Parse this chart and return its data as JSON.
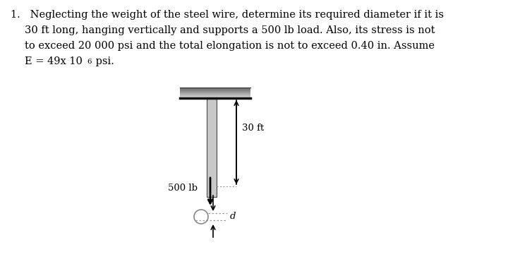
{
  "bg_color": "#ffffff",
  "text_color": "#000000",
  "arrow_color": "#000000",
  "dotted_color": "#999999",
  "circle_color": "#888888",
  "wire_fill": "#c8c8c8",
  "wire_border": "#444444",
  "support_light": "#d4d4d4",
  "support_dark": "#444444",
  "label_30ft": "30 ft",
  "label_500lb": "500 lb",
  "label_d": "d",
  "fontsize_text": 10.5,
  "fontsize_label": 9.5
}
